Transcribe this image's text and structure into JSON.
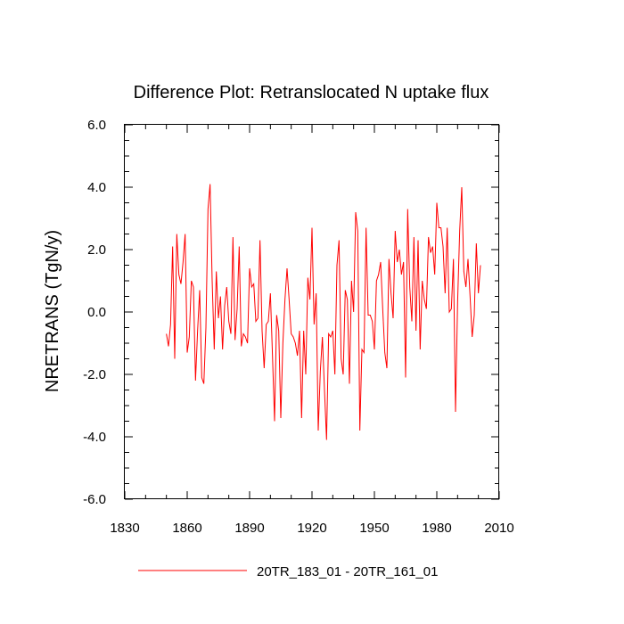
{
  "chart_data": {
    "type": "line",
    "title": "Difference Plot: Retranslocated N uptake flux",
    "xlabel": "",
    "ylabel": "NRETRANS  (TgN/y)",
    "xlim": [
      1830,
      2010
    ],
    "ylim": [
      -6.0,
      6.0
    ],
    "x_ticks": [
      1830,
      1860,
      1890,
      1920,
      1950,
      1980,
      2010
    ],
    "y_ticks": [
      -6.0,
      -4.0,
      -2.0,
      0.0,
      2.0,
      4.0,
      6.0
    ],
    "x_tick_labels": [
      "1830",
      "1860",
      "1890",
      "1920",
      "1950",
      "1980",
      "2010"
    ],
    "y_tick_labels": [
      "-6.0",
      "-4.0",
      "-2.0",
      "0.0",
      "2.0",
      "4.0",
      "6.0"
    ],
    "grid": false,
    "legend_position": "bottom-center",
    "series": [
      {
        "name": "20TR_183_01 - 20TR_161_01",
        "color": "#ff0000",
        "x_start": 1850,
        "x_step": 1,
        "values": [
          -0.7,
          -1.1,
          -0.4,
          2.1,
          -1.5,
          2.5,
          1.2,
          0.9,
          1.6,
          2.5,
          -1.3,
          -0.8,
          1.0,
          0.8,
          -2.2,
          -0.6,
          0.7,
          -2.1,
          -2.3,
          -0.5,
          3.3,
          4.1,
          1.0,
          -1.2,
          1.3,
          -0.2,
          0.5,
          -1.2,
          0.2,
          0.8,
          -0.3,
          -0.7,
          2.4,
          -0.9,
          0.1,
          2.1,
          -1.1,
          -0.7,
          -0.8,
          -1.0,
          1.4,
          0.8,
          0.9,
          -0.3,
          -0.2,
          2.3,
          -0.6,
          -1.8,
          -0.4,
          -0.3,
          0.6,
          -1.4,
          -3.5,
          -0.1,
          -0.6,
          -3.4,
          -1.0,
          0.4,
          1.4,
          0.4,
          -0.7,
          -0.8,
          -1.0,
          -1.4,
          -0.6,
          -3.4,
          -0.6,
          -2.0,
          1.1,
          0.4,
          2.7,
          -0.4,
          0.6,
          -3.8,
          -1.9,
          -0.8,
          -2.5,
          -4.1,
          -0.7,
          -0.8,
          -0.6,
          -2.0,
          1.5,
          2.3,
          -1.5,
          -2.0,
          0.7,
          0.4,
          -2.3,
          1.0,
          0.0,
          3.2,
          2.6,
          -3.8,
          -1.2,
          -1.3,
          2.7,
          -0.1,
          -0.1,
          -0.3,
          -1.2,
          1.0,
          1.2,
          1.6,
          0.1,
          -1.3,
          -1.8,
          1.7,
          0.6,
          -0.2,
          2.6,
          1.6,
          2.0,
          1.2,
          1.6,
          -2.1,
          3.3,
          0.8,
          -0.3,
          2.4,
          -0.6,
          2.3,
          -1.2,
          1.0,
          0.4,
          0.1,
          2.4,
          1.9,
          2.1,
          1.2,
          3.5,
          2.7,
          2.7,
          2.1,
          0.6,
          2.7,
          0.0,
          0.1,
          1.7,
          -3.2,
          0.3,
          2.6,
          4.0,
          1.3,
          0.8,
          1.7,
          0.5,
          -0.8,
          -0.1,
          2.2,
          0.6,
          1.5
        ]
      }
    ]
  }
}
